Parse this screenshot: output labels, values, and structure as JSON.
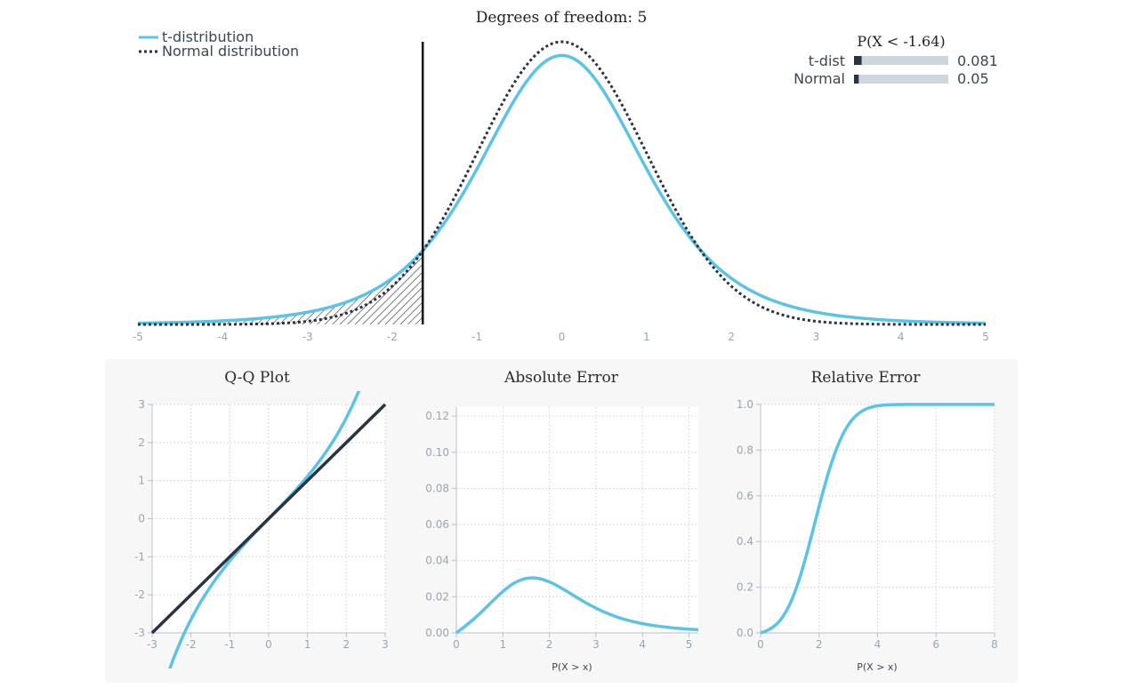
{
  "chart_data": [
    {
      "type": "line",
      "title": "Degrees of freedom: 5",
      "xlim": [
        -5,
        5
      ],
      "x_ticks": [
        -5,
        -4,
        -3,
        -2,
        -1,
        0,
        1,
        2,
        3,
        4,
        5
      ],
      "degrees_of_freedom": 5,
      "cutoff_x": -1.64,
      "shaded_region": "x < -1.64 under t-distribution (hatched)",
      "grid": false,
      "legend_position": "top-left",
      "series": [
        {
          "name": "t-distribution",
          "color": "#5bc4e6",
          "style": "solid"
        },
        {
          "name": "Normal distribution",
          "color": "#2b3245",
          "style": "dotted"
        }
      ],
      "probability_box": {
        "title": "P(X < -1.64)",
        "rows": [
          {
            "label": "t-dist",
            "value": 0.081,
            "display": "0.081"
          },
          {
            "label": "Normal",
            "value": 0.05,
            "display": "0.05"
          }
        ]
      }
    },
    {
      "type": "line",
      "title": "Q-Q Plot",
      "xlim": [
        -3,
        3
      ],
      "ylim": [
        -3,
        3
      ],
      "x_ticks": [
        -3,
        -2,
        -1,
        0,
        1,
        2,
        3
      ],
      "y_ticks": [
        -3,
        -2,
        -1,
        0,
        1,
        2,
        3
      ],
      "grid": true,
      "series": [
        {
          "color": "#5bc4e6",
          "curve": "t-quantile vs normal quantile"
        },
        {
          "color": "#2b3245",
          "x": [
            -3,
            3
          ],
          "y": [
            -3,
            3
          ]
        }
      ]
    },
    {
      "type": "line",
      "title": "Absolute Error",
      "xlabel": "P(X > x)",
      "xlim": [
        0,
        5.2
      ],
      "ylim": [
        0,
        0.125
      ],
      "x_ticks": [
        0,
        1,
        2,
        3,
        4,
        5
      ],
      "y_ticks": [
        "0.00",
        "0.02",
        "0.04",
        "0.06",
        "0.08",
        "0.10",
        "0.12"
      ],
      "grid": true,
      "series": [
        {
          "color": "#5bc4e6",
          "peak_x": 1.6,
          "peak_y": 0.03
        }
      ]
    },
    {
      "type": "line",
      "title": "Relative Error",
      "xlabel": "P(X > x)",
      "xlim": [
        0,
        8
      ],
      "ylim": [
        0,
        1.0
      ],
      "x_ticks": [
        0,
        2,
        4,
        6,
        8
      ],
      "y_ticks": [
        "0.0",
        "0.2",
        "0.4",
        "0.6",
        "0.8",
        "1.0"
      ],
      "grid": true,
      "series": [
        {
          "color": "#5bc4e6"
        }
      ]
    }
  ]
}
